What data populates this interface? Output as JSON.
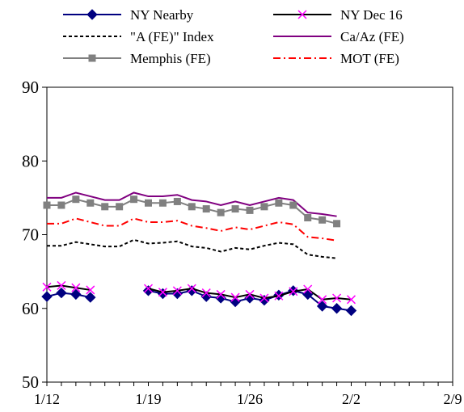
{
  "chart_data": {
    "type": "line",
    "title": "",
    "xlabel": "",
    "ylabel": "",
    "ylim": [
      50,
      90
    ],
    "yticks": [
      50,
      60,
      70,
      80,
      90
    ],
    "xlim": [
      "2024-01-12",
      "2024-02-09"
    ],
    "xticks": [
      {
        "date": "2024-01-12",
        "label": "1/12"
      },
      {
        "date": "2024-01-19",
        "label": "1/19"
      },
      {
        "date": "2024-01-26",
        "label": "1/26"
      },
      {
        "date": "2024-02-02",
        "label": "2/2"
      },
      {
        "date": "2024-02-09",
        "label": "2/9"
      }
    ],
    "grid": false,
    "legend_position": "top",
    "x": [
      "2024-01-12",
      "2024-01-13",
      "2024-01-14",
      "2024-01-15",
      "2024-01-16",
      "2024-01-17",
      "2024-01-18",
      "2024-01-19",
      "2024-01-20",
      "2024-01-21",
      "2024-01-22",
      "2024-01-23",
      "2024-01-24",
      "2024-01-25",
      "2024-01-26",
      "2024-01-27",
      "2024-01-28",
      "2024-01-29",
      "2024-01-30",
      "2024-01-31",
      "2024-02-01",
      "2024-02-02",
      "2024-02-03",
      "2024-02-04",
      "2024-02-05",
      "2024-02-06",
      "2024-02-07",
      "2024-02-08",
      "2024-02-09"
    ],
    "series": [
      {
        "name": "NY Nearby",
        "color": "#000080",
        "marker": "diamond",
        "line": "solid",
        "values": [
          61.6,
          62.1,
          61.9,
          61.5,
          null,
          null,
          null,
          62.4,
          62.0,
          62.0,
          62.4,
          61.6,
          61.4,
          60.9,
          61.4,
          61.1,
          61.8,
          62.4,
          61.9,
          60.3,
          60.0,
          59.7,
          null,
          null,
          null,
          null,
          null,
          null,
          null
        ]
      },
      {
        "name": "NY Dec 16",
        "color": "#000000",
        "marker_color": "#ff00ff",
        "marker": "x",
        "line": "solid",
        "values": [
          62.9,
          63.1,
          62.8,
          62.5,
          null,
          null,
          null,
          62.7,
          62.2,
          62.4,
          62.7,
          62.1,
          61.9,
          61.5,
          61.9,
          61.4,
          61.7,
          62.3,
          62.6,
          61.2,
          61.4,
          61.2,
          null,
          null,
          null,
          null,
          null,
          null,
          null
        ]
      },
      {
        "name": "\"A (FE)\" Index",
        "color": "#000000",
        "marker": "none",
        "line": "dashed",
        "values": [
          68.5,
          68.5,
          69.0,
          68.7,
          68.4,
          68.4,
          69.3,
          68.8,
          68.9,
          69.1,
          68.4,
          68.2,
          67.7,
          68.2,
          68.0,
          68.5,
          68.9,
          68.7,
          67.3,
          67.0,
          66.8,
          null,
          null,
          null,
          null,
          null,
          null,
          null,
          null
        ]
      },
      {
        "name": "Ca/Az (FE)",
        "color": "#800080",
        "marker": "none",
        "line": "solid",
        "values": [
          75.0,
          75.0,
          75.7,
          75.2,
          74.7,
          74.7,
          75.7,
          75.2,
          75.2,
          75.4,
          74.7,
          74.5,
          74.0,
          74.5,
          74.0,
          74.5,
          75.0,
          74.7,
          73.0,
          72.8,
          72.5,
          null,
          null,
          null,
          null,
          null,
          null,
          null,
          null
        ]
      },
      {
        "name": "Memphis (FE)",
        "color": "#808080",
        "marker": "square",
        "line": "solid",
        "values": [
          74.0,
          74.0,
          74.8,
          74.3,
          73.8,
          73.8,
          74.8,
          74.3,
          74.3,
          74.5,
          73.8,
          73.5,
          73.0,
          73.5,
          73.3,
          73.8,
          74.3,
          74.0,
          72.3,
          72.0,
          71.5,
          null,
          null,
          null,
          null,
          null,
          null,
          null,
          null
        ]
      },
      {
        "name": "MOT (FE)",
        "color": "#ff0000",
        "marker": "none",
        "line": "dashdot",
        "values": [
          71.5,
          71.5,
          72.2,
          71.7,
          71.2,
          71.2,
          72.2,
          71.7,
          71.7,
          71.9,
          71.2,
          70.9,
          70.5,
          71.0,
          70.7,
          71.2,
          71.7,
          71.4,
          69.7,
          69.5,
          69.2,
          null,
          null,
          null,
          null,
          null,
          null,
          null,
          null
        ]
      }
    ]
  }
}
